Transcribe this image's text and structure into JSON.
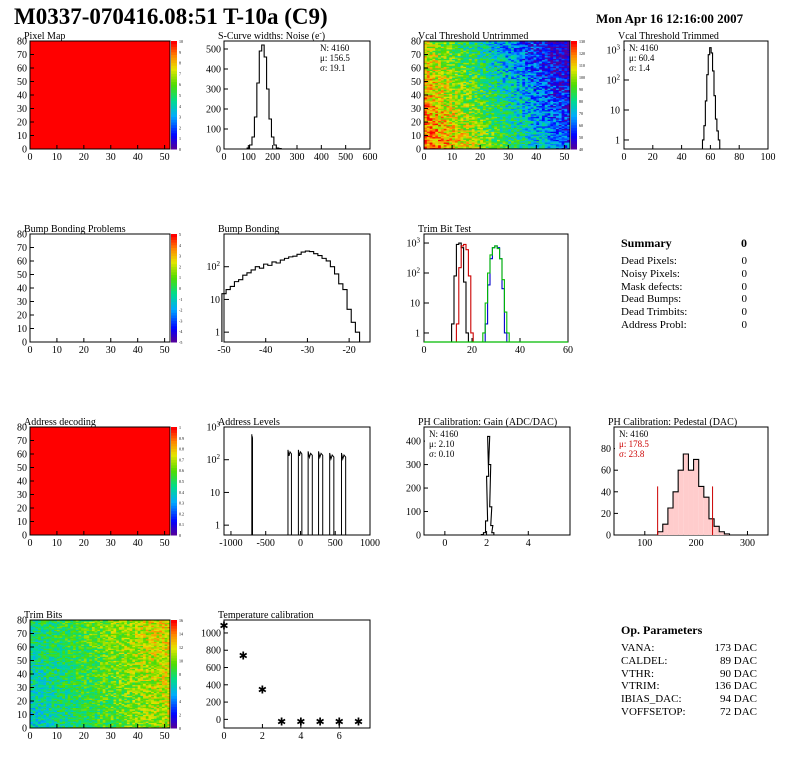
{
  "header": {
    "title": "M0337-070416.08:51 T-10a (C9)",
    "date": "Mon Apr 16 12:16:00 2007"
  },
  "colors": {
    "map_red": "#ff0000",
    "hist_line": "#000000",
    "trim_red": "#cc0000",
    "trim_green": "#00bb00",
    "trim_blue": "#0000cc",
    "pedestal_fit": "#cc0000"
  },
  "chart_data": [
    {
      "id": "pixel-map",
      "type": "heatmap",
      "title": "Pixel Map",
      "xlim": [
        0,
        52
      ],
      "ylim": [
        0,
        80
      ],
      "xticks": [
        "0",
        "10",
        "20",
        "30",
        "40",
        "50"
      ],
      "yticks": [
        "0",
        "10",
        "20",
        "30",
        "40",
        "50",
        "60",
        "70",
        "80"
      ],
      "fill": "uniform red",
      "colorbar_ticks": [
        "0",
        "1",
        "2",
        "3",
        "4",
        "5",
        "6",
        "7",
        "8",
        "9",
        "10"
      ]
    },
    {
      "id": "scurve",
      "type": "line",
      "title": "S-Curve widths: Noise (e",
      "title_sup": "-",
      "xlim": [
        0,
        600
      ],
      "ylim": [
        0,
        540
      ],
      "xticks": [
        "0",
        "100",
        "200",
        "300",
        "400",
        "500",
        "600"
      ],
      "yticks": [
        "0",
        "100",
        "200",
        "300",
        "400",
        "500"
      ],
      "x": [
        90,
        100,
        110,
        120,
        130,
        140,
        150,
        160,
        170,
        180,
        190,
        200,
        210,
        220,
        230,
        240
      ],
      "values": [
        0,
        5,
        20,
        60,
        160,
        330,
        490,
        520,
        460,
        300,
        150,
        60,
        20,
        5,
        2,
        0
      ],
      "stats": [
        "N: 4160",
        "μ: 156.5",
        "σ: 19.1"
      ]
    },
    {
      "id": "vcal-untrimmed",
      "type": "heatmap",
      "title": "Vcal Threshold Untrimmed",
      "xlim": [
        0,
        52
      ],
      "ylim": [
        0,
        80
      ],
      "xticks": [
        "0",
        "10",
        "20",
        "30",
        "40",
        "50"
      ],
      "yticks": [
        "0",
        "10",
        "20",
        "30",
        "40",
        "50",
        "60",
        "70",
        "80"
      ],
      "colorbar_ticks": [
        "40",
        "50",
        "60",
        "70",
        "80",
        "90",
        "100",
        "110",
        "120",
        "130"
      ],
      "trend": "high values (red/orange) at lower-left, low values (blue) at right"
    },
    {
      "id": "vcal-trimmed",
      "type": "line",
      "title": "Vcal Threshold Trimmed",
      "log_y": true,
      "xlim": [
        0,
        100
      ],
      "ylim": [
        0.5,
        2000
      ],
      "xticks": [
        "0",
        "20",
        "40",
        "60",
        "80",
        "100"
      ],
      "ytick_labels": [
        {
          "exp": "3"
        },
        {
          "exp": "2"
        },
        {
          "exp": ""
        },
        {
          "exp": "1"
        }
      ],
      "x": [
        55,
        56,
        57,
        58,
        59,
        60,
        61,
        62,
        63,
        64,
        65,
        66
      ],
      "values": [
        1,
        3,
        20,
        150,
        700,
        1200,
        800,
        200,
        30,
        5,
        2,
        1
      ],
      "stats": [
        "N: 4160",
        "μ: 60.4",
        "σ:  1.4"
      ]
    },
    {
      "id": "bump-problems",
      "type": "heatmap",
      "title": "Bump Bonding Problems",
      "xlim": [
        0,
        52
      ],
      "ylim": [
        0,
        80
      ],
      "xticks": [
        "0",
        "10",
        "20",
        "30",
        "40",
        "50"
      ],
      "yticks": [
        "0",
        "10",
        "20",
        "30",
        "40",
        "50",
        "60",
        "70",
        "80"
      ],
      "fill": "empty",
      "colorbar_ticks": [
        "-5",
        "-4",
        "-3",
        "-2",
        "-1",
        "0",
        "1",
        "2",
        "3",
        "4",
        "5"
      ]
    },
    {
      "id": "bump-bonding",
      "type": "line",
      "title": "Bump Bonding",
      "log_y": true,
      "xlim": [
        -50,
        -15
      ],
      "ylim": [
        0.5,
        1000
      ],
      "xticks": [
        "-50",
        "-40",
        "-30",
        "-20"
      ],
      "x": [
        -50,
        -49,
        -48,
        -47,
        -46,
        -45,
        -44,
        -43,
        -42,
        -41,
        -40,
        -39,
        -38,
        -37,
        -36,
        -35,
        -34,
        -33,
        -32,
        -31,
        -30,
        -29,
        -28,
        -27,
        -26,
        -25,
        -24,
        -23,
        -22,
        -21,
        -20,
        -19,
        -18,
        -17
      ],
      "values": [
        15,
        20,
        25,
        35,
        40,
        55,
        65,
        80,
        100,
        90,
        120,
        110,
        140,
        130,
        160,
        180,
        200,
        210,
        240,
        280,
        300,
        290,
        250,
        220,
        180,
        150,
        100,
        60,
        30,
        20,
        5,
        2,
        1,
        0.5
      ]
    },
    {
      "id": "trim-bit-test",
      "type": "line",
      "title": "Trim Bit Test",
      "log_y": true,
      "xlim": [
        0,
        60
      ],
      "ylim": [
        0.5,
        2000
      ],
      "xticks": [
        "0",
        "20",
        "40",
        "60"
      ],
      "series": [
        {
          "color": "#000000",
          "x": [
            12,
            13,
            14,
            15,
            16,
            17,
            18
          ],
          "values": [
            2,
            80,
            900,
            1000,
            700,
            50,
            1
          ]
        },
        {
          "color": "#cc0000",
          "x": [
            14,
            15,
            16,
            17,
            18,
            19,
            20
          ],
          "values": [
            2,
            150,
            800,
            900,
            600,
            80,
            1
          ]
        },
        {
          "color": "#0000cc",
          "x": [
            26,
            27,
            28,
            29,
            30,
            31,
            32,
            33,
            34
          ],
          "values": [
            2,
            40,
            300,
            700,
            800,
            700,
            300,
            30,
            1
          ]
        },
        {
          "color": "#00bb00",
          "x": [
            25,
            26,
            27,
            28,
            29,
            30,
            31,
            32,
            33,
            34,
            35
          ],
          "values": [
            1,
            10,
            100,
            400,
            700,
            800,
            650,
            300,
            60,
            5,
            1
          ]
        }
      ]
    },
    {
      "id": "address-decoding",
      "type": "heatmap",
      "title": "Address decoding",
      "xlim": [
        0,
        52
      ],
      "ylim": [
        0,
        80
      ],
      "xticks": [
        "0",
        "10",
        "20",
        "30",
        "40",
        "50"
      ],
      "yticks": [
        "0",
        "10",
        "20",
        "30",
        "40",
        "50",
        "60",
        "70",
        "80"
      ],
      "fill": "uniform red",
      "colorbar_ticks": [
        "0",
        "0.1",
        "0.2",
        "0.3",
        "0.4",
        "0.5",
        "0.6",
        "0.7",
        "0.8",
        "0.9",
        "1"
      ]
    },
    {
      "id": "address-levels",
      "type": "line",
      "title": "Address Levels",
      "log_y": true,
      "xlim": [
        -1100,
        1000
      ],
      "ylim": [
        0.5,
        1000
      ],
      "xticks": [
        "-1000",
        "-500",
        "0",
        "500",
        "1000"
      ],
      "peaks": [
        {
          "x": [
            -700,
            -690
          ],
          "value": 600
        },
        {
          "x": [
            -180,
            -130
          ],
          "value": 200
        },
        {
          "x": [
            -30,
            20
          ],
          "value": 200
        },
        {
          "x": [
            110,
            170
          ],
          "value": 180
        },
        {
          "x": [
            260,
            320
          ],
          "value": 180
        },
        {
          "x": [
            420,
            480
          ],
          "value": 160
        },
        {
          "x": [
            590,
            650
          ],
          "value": 160
        }
      ]
    },
    {
      "id": "ph-gain",
      "type": "line",
      "title": "PH Calibration: Gain (ADC/DAC)",
      "xlim": [
        -1,
        6
      ],
      "ylim": [
        0,
        460
      ],
      "xticks": [
        "0",
        "2",
        "4"
      ],
      "yticks": [
        "0",
        "100",
        "200",
        "300",
        "400"
      ],
      "x": [
        1.8,
        1.9,
        2.0,
        2.05,
        2.1,
        2.15,
        2.2,
        2.25,
        2.3,
        2.4
      ],
      "values": [
        2,
        10,
        60,
        250,
        420,
        300,
        120,
        40,
        10,
        0
      ],
      "stats": [
        "N: 4160",
        "μ: 2.10",
        "σ: 0.10"
      ]
    },
    {
      "id": "ph-pedestal",
      "type": "bar",
      "title": "PH Calibration: Pedestal (DAC)",
      "xlim": [
        40,
        340
      ],
      "ylim": [
        0,
        100
      ],
      "xticks": [
        "100",
        "200",
        "300"
      ],
      "yticks": [
        "0",
        "20",
        "40",
        "60",
        "80"
      ],
      "x": [
        130,
        140,
        150,
        160,
        170,
        180,
        190,
        200,
        210,
        220,
        230,
        240,
        250,
        260
      ],
      "values": [
        3,
        10,
        25,
        40,
        60,
        75,
        60,
        70,
        45,
        35,
        15,
        8,
        3,
        1
      ],
      "stats": [
        "N: 4160",
        "μ: 178.5",
        "σ: 23.8"
      ]
    },
    {
      "id": "trim-bits",
      "type": "heatmap",
      "title": "Trim Bits",
      "xlim": [
        0,
        52
      ],
      "ylim": [
        0,
        80
      ],
      "xticks": [
        "0",
        "10",
        "20",
        "30",
        "40",
        "50"
      ],
      "yticks": [
        "0",
        "10",
        "20",
        "30",
        "40",
        "50",
        "60",
        "70",
        "80"
      ],
      "colorbar_ticks": [
        "0",
        "2",
        "4",
        "6",
        "8",
        "10",
        "12",
        "14",
        "16"
      ],
      "trend": "mostly green-yellow, higher (orange/red) toward right, blue toward lower-left"
    },
    {
      "id": "temp-cal",
      "type": "scatter",
      "title": "Temperature calibration",
      "xlim": [
        0,
        7.6
      ],
      "ylim": [
        -100,
        1150
      ],
      "xticks": [
        "0",
        "2",
        "4",
        "6"
      ],
      "yticks": [
        "0",
        "200",
        "400",
        "600",
        "800",
        "1000"
      ],
      "x": [
        0,
        1,
        2,
        3,
        4,
        5,
        6,
        7
      ],
      "values": [
        1100,
        750,
        360,
        -15,
        -15,
        -15,
        -15,
        -15
      ]
    }
  ],
  "summary": {
    "title": "Summary",
    "total": "0",
    "rows": [
      {
        "label": "Dead Pixels:",
        "value": "0"
      },
      {
        "label": "Noisy Pixels:",
        "value": "0"
      },
      {
        "label": "Mask defects:",
        "value": "0"
      },
      {
        "label": "Dead Bumps:",
        "value": "0"
      },
      {
        "label": "Dead Trimbits:",
        "value": "0"
      },
      {
        "label": "Address Probl:",
        "value": "0"
      }
    ]
  },
  "op_params": {
    "title": "Op. Parameters",
    "rows": [
      {
        "label": "VANA:",
        "value": "173 DAC"
      },
      {
        "label": "CALDEL:",
        "value": "89 DAC"
      },
      {
        "label": "VTHR:",
        "value": "90 DAC"
      },
      {
        "label": "VTRIM:",
        "value": "136 DAC"
      },
      {
        "label": "IBIAS_DAC:",
        "value": "94 DAC"
      },
      {
        "label": "VOFFSETOP:",
        "value": "72 DAC"
      }
    ]
  }
}
